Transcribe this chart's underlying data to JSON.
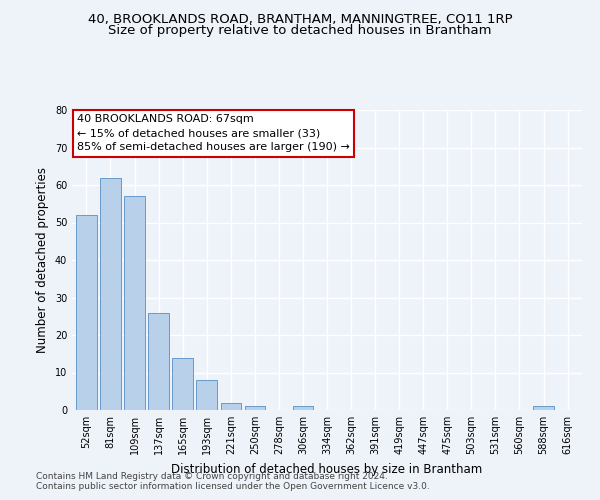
{
  "title1": "40, BROOKLANDS ROAD, BRANTHAM, MANNINGTREE, CO11 1RP",
  "title2": "Size of property relative to detached houses in Brantham",
  "xlabel": "Distribution of detached houses by size in Brantham",
  "ylabel": "Number of detached properties",
  "categories": [
    "52sqm",
    "81sqm",
    "109sqm",
    "137sqm",
    "165sqm",
    "193sqm",
    "221sqm",
    "250sqm",
    "278sqm",
    "306sqm",
    "334sqm",
    "362sqm",
    "391sqm",
    "419sqm",
    "447sqm",
    "475sqm",
    "503sqm",
    "531sqm",
    "560sqm",
    "588sqm",
    "616sqm"
  ],
  "values": [
    52,
    62,
    57,
    26,
    14,
    8,
    2,
    1,
    0,
    1,
    0,
    0,
    0,
    0,
    0,
    0,
    0,
    0,
    0,
    1,
    0
  ],
  "bar_color": "#b8d0ea",
  "bar_edge_color": "#6699cc",
  "background_color": "#eef2f9",
  "grid_color": "#ffffff",
  "annotation_text": "40 BROOKLANDS ROAD: 67sqm\n← 15% of detached houses are smaller (33)\n85% of semi-detached houses are larger (190) →",
  "annotation_box_color": "#ffffff",
  "annotation_box_edge_color": "#cc0000",
  "ylim": [
    0,
    80
  ],
  "yticks": [
    0,
    10,
    20,
    30,
    40,
    50,
    60,
    70,
    80
  ],
  "footnote1": "Contains HM Land Registry data © Crown copyright and database right 2024.",
  "footnote2": "Contains public sector information licensed under the Open Government Licence v3.0.",
  "title1_fontsize": 9.5,
  "title2_fontsize": 9.5,
  "xlabel_fontsize": 8.5,
  "ylabel_fontsize": 8.5,
  "tick_fontsize": 7,
  "annotation_fontsize": 8,
  "footnote_fontsize": 6.5
}
